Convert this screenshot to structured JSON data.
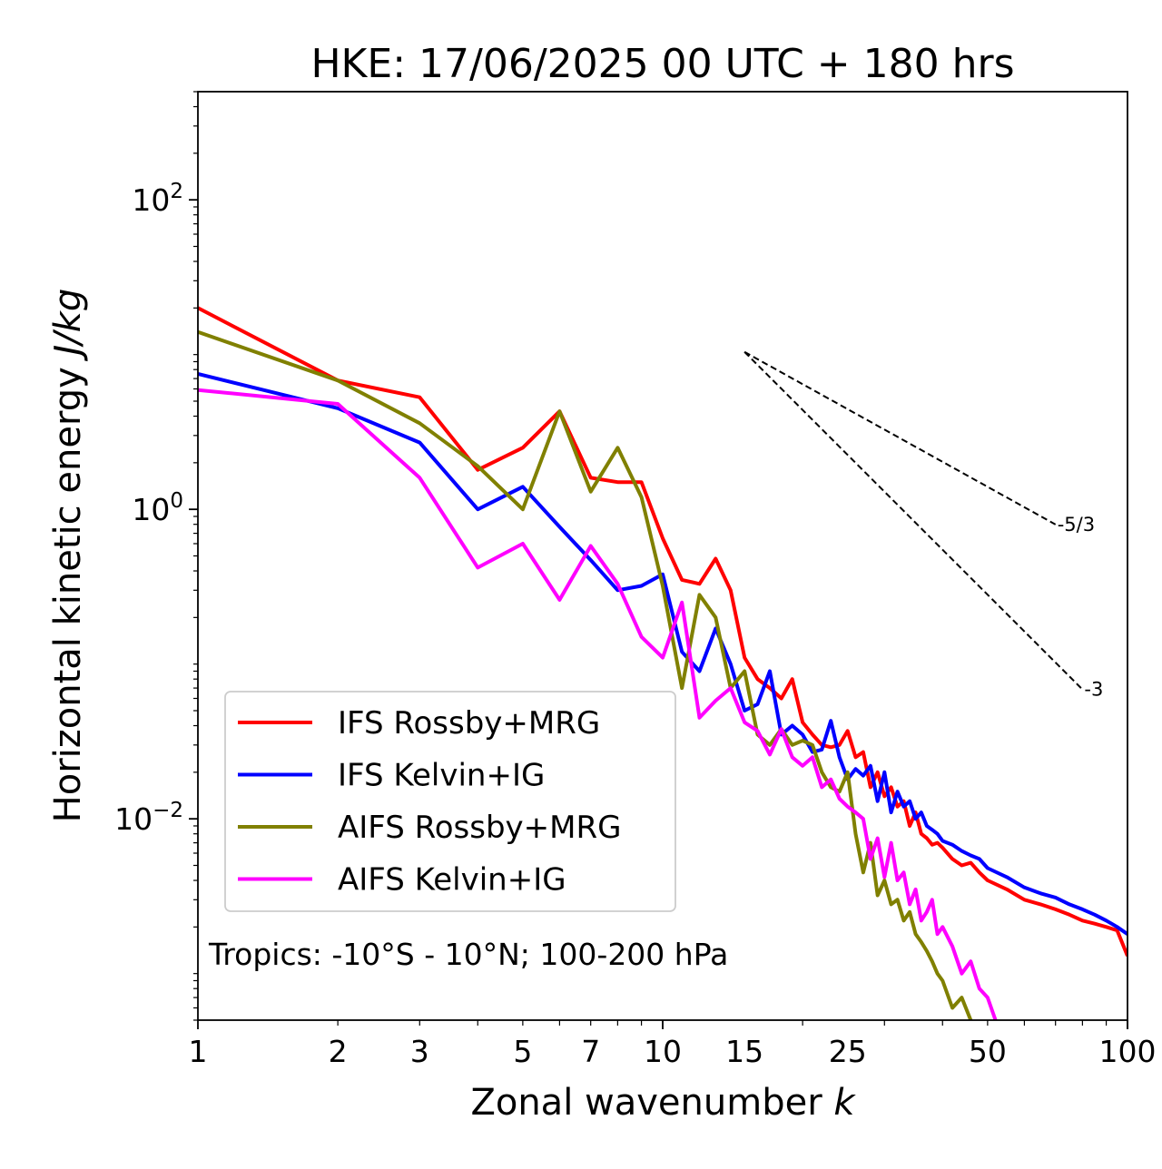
{
  "chart_data": {
    "type": "line",
    "title": "HKE: 17/06/2025 00 UTC + 180 hrs",
    "xlabel": "Zonal wavenumber",
    "xlabel_var": "k",
    "ylabel": "Horizontal kinetic energy",
    "ylabel_unit": "J/kg",
    "xscale": "log",
    "yscale": "log",
    "xlim": [
      1,
      100
    ],
    "ylim": [
      0.0005,
      500
    ],
    "x_ticks": [
      1,
      2,
      3,
      5,
      7,
      10,
      15,
      25,
      50,
      100
    ],
    "x_tick_labels": [
      "1",
      "2",
      "3",
      "5",
      "7",
      "10",
      "15",
      "25",
      "50",
      "100"
    ],
    "y_ticks": [
      100,
      1,
      0.01
    ],
    "y_tick_labels": [
      {
        "base": "10",
        "exp": "2"
      },
      {
        "base": "10",
        "exp": "0"
      },
      {
        "base": "10",
        "exp": "−2"
      }
    ],
    "annotation": "Tropics: -10°S - 10°N; 100-200 hPa",
    "legend_position": "lower-left",
    "reference_lines": [
      {
        "label": "-5/3",
        "slope": -1.6667,
        "k0": 15,
        "e0": 10.4,
        "k1": 70,
        "color": "#000000"
      },
      {
        "label": "-3",
        "slope": -3,
        "k0": 15,
        "e0": 10.4,
        "k1": 80,
        "color": "#000000"
      }
    ],
    "series": [
      {
        "name": "IFS Rossby+MRG",
        "color": "#ff0000",
        "x": [
          1,
          2,
          3,
          4,
          5,
          6,
          7,
          8,
          9,
          10,
          11,
          12,
          13,
          14,
          15,
          16,
          17,
          18,
          19,
          20,
          21,
          22,
          23,
          24,
          25,
          26,
          27,
          28,
          29,
          30,
          31,
          32,
          33,
          34,
          35,
          36,
          37,
          38,
          39,
          40,
          42,
          44,
          46,
          48,
          50,
          55,
          60,
          65,
          70,
          75,
          80,
          85,
          90,
          95,
          100
        ],
        "values": [
          20,
          6.8,
          5.3,
          1.8,
          2.5,
          4.3,
          1.6,
          1.5,
          1.5,
          0.65,
          0.35,
          0.33,
          0.48,
          0.3,
          0.11,
          0.08,
          0.07,
          0.06,
          0.08,
          0.042,
          0.035,
          0.03,
          0.029,
          0.03,
          0.037,
          0.025,
          0.027,
          0.016,
          0.02,
          0.014,
          0.016,
          0.012,
          0.013,
          0.009,
          0.011,
          0.008,
          0.0075,
          0.0068,
          0.007,
          0.0065,
          0.0055,
          0.005,
          0.0052,
          0.0045,
          0.004,
          0.0035,
          0.003,
          0.0028,
          0.0026,
          0.0024,
          0.0022,
          0.0021,
          0.002,
          0.0019,
          0.0013
        ]
      },
      {
        "name": "IFS Kelvin+IG",
        "color": "#0000ff",
        "x": [
          1,
          2,
          3,
          4,
          5,
          6,
          7,
          8,
          9,
          10,
          11,
          12,
          13,
          14,
          15,
          16,
          17,
          18,
          19,
          20,
          21,
          22,
          23,
          24,
          25,
          26,
          27,
          28,
          29,
          30,
          31,
          32,
          33,
          34,
          35,
          36,
          37,
          38,
          39,
          40,
          42,
          44,
          46,
          48,
          50,
          55,
          60,
          65,
          70,
          75,
          80,
          85,
          90,
          95,
          100
        ],
        "values": [
          7.5,
          4.5,
          2.7,
          1.0,
          1.4,
          0.77,
          0.47,
          0.3,
          0.32,
          0.38,
          0.12,
          0.09,
          0.17,
          0.1,
          0.05,
          0.055,
          0.09,
          0.035,
          0.04,
          0.035,
          0.027,
          0.028,
          0.043,
          0.025,
          0.018,
          0.021,
          0.019,
          0.022,
          0.013,
          0.02,
          0.011,
          0.015,
          0.012,
          0.013,
          0.01,
          0.011,
          0.009,
          0.0085,
          0.008,
          0.0072,
          0.0068,
          0.0062,
          0.0058,
          0.0055,
          0.0048,
          0.0042,
          0.0036,
          0.0033,
          0.0031,
          0.0028,
          0.0026,
          0.0024,
          0.0022,
          0.002,
          0.0018
        ]
      },
      {
        "name": "AIFS Rossby+MRG",
        "color": "#808000",
        "x": [
          1,
          2,
          3,
          4,
          5,
          6,
          7,
          8,
          9,
          10,
          11,
          12,
          13,
          14,
          15,
          16,
          17,
          18,
          19,
          20,
          21,
          22,
          23,
          24,
          25,
          26,
          27,
          28,
          29,
          30,
          31,
          32,
          33,
          34,
          35,
          36,
          37,
          38,
          39,
          40,
          42,
          44,
          46,
          48,
          50
        ],
        "values": [
          14,
          6.8,
          3.6,
          1.9,
          1.0,
          4.3,
          1.3,
          2.5,
          1.2,
          0.32,
          0.07,
          0.28,
          0.2,
          0.07,
          0.09,
          0.035,
          0.03,
          0.038,
          0.03,
          0.032,
          0.03,
          0.02,
          0.016,
          0.015,
          0.02,
          0.008,
          0.0045,
          0.007,
          0.0032,
          0.004,
          0.0028,
          0.003,
          0.0022,
          0.0025,
          0.0018,
          0.0016,
          0.0014,
          0.0012,
          0.001,
          0.0009,
          0.0006,
          0.0007,
          0.0005,
          0.0004,
          0.0003
        ]
      },
      {
        "name": "AIFS Kelvin+IG",
        "color": "#ff00ff",
        "x": [
          1,
          2,
          3,
          4,
          5,
          6,
          7,
          8,
          9,
          10,
          11,
          12,
          13,
          14,
          15,
          16,
          17,
          18,
          19,
          20,
          21,
          22,
          23,
          24,
          25,
          26,
          27,
          28,
          29,
          30,
          31,
          32,
          33,
          34,
          35,
          36,
          37,
          38,
          39,
          40,
          42,
          44,
          46,
          48,
          50,
          52,
          55
        ],
        "values": [
          5.9,
          4.8,
          1.6,
          0.42,
          0.6,
          0.26,
          0.58,
          0.33,
          0.15,
          0.11,
          0.25,
          0.045,
          0.058,
          0.07,
          0.042,
          0.037,
          0.026,
          0.038,
          0.025,
          0.022,
          0.025,
          0.016,
          0.018,
          0.0135,
          0.012,
          0.011,
          0.01,
          0.0055,
          0.0075,
          0.0042,
          0.007,
          0.004,
          0.0045,
          0.0028,
          0.0035,
          0.0022,
          0.0025,
          0.003,
          0.0018,
          0.002,
          0.0015,
          0.001,
          0.0012,
          0.0008,
          0.0007,
          0.0005,
          0.0004
        ]
      }
    ]
  }
}
